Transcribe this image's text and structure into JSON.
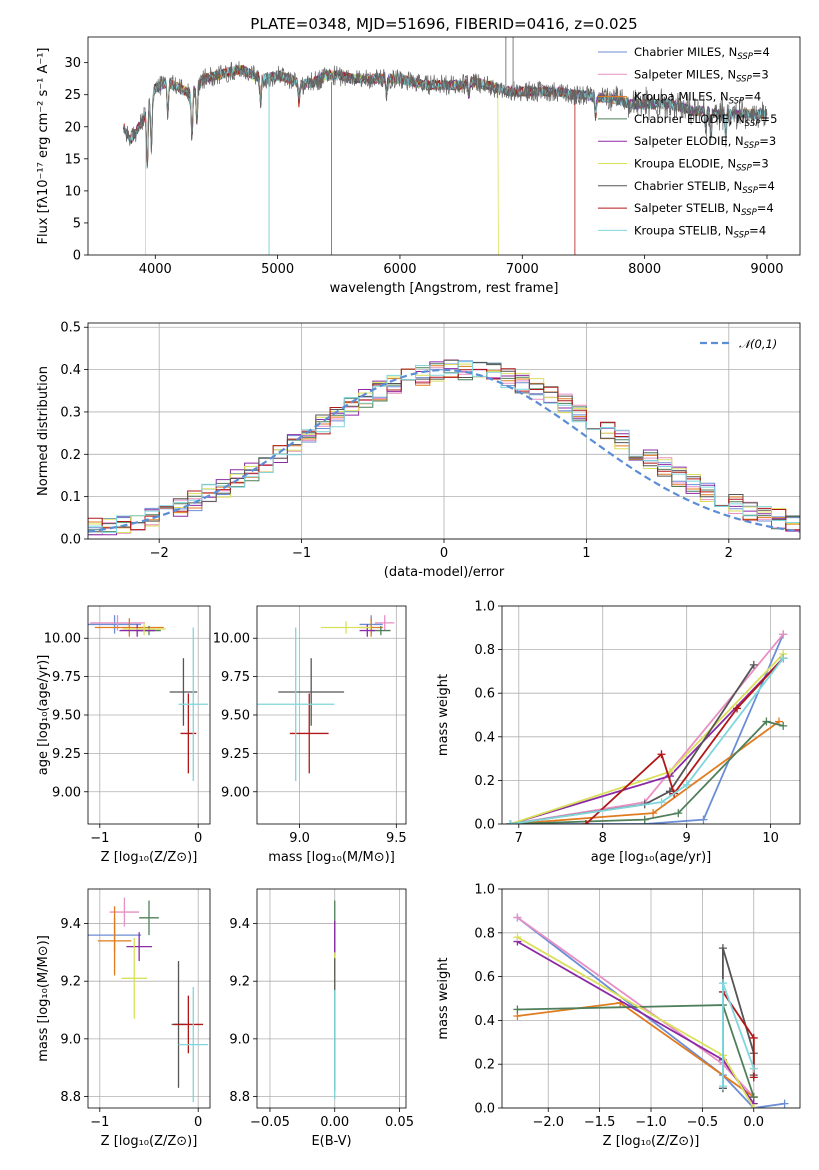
{
  "colors": {
    "Chabrier MILES": "#6b8ed6",
    "Salpeter MILES": "#e88fc4",
    "Kroupa MILES": "#e07b1f",
    "Chabrier ELODIE": "#4f7f5a",
    "Salpeter ELODIE": "#8b2aa6",
    "Kroupa ELODIE": "#d9e05a",
    "Chabrier STELIB": "#555555",
    "Salpeter STELIB": "#b01818",
    "Kroupa STELIB": "#7fd6dc"
  },
  "chart_data": [
    {
      "id": "spectrum",
      "type": "line",
      "title": "PLATE=0348, MJD=51696, FIBERID=0416, z=0.025",
      "xlabel": "wavelength [Angstrom, rest frame]",
      "ylabel": "Flux [fλ10⁻¹⁷ erg cm⁻² s⁻¹ A⁻¹]",
      "xlim": [
        3450,
        9270
      ],
      "ylim": [
        0,
        34
      ],
      "xticks": [
        "4000",
        "5000",
        "6000",
        "7000",
        "8000",
        "9000"
      ],
      "yticks": [
        "0",
        "5",
        "10",
        "15",
        "20",
        "25",
        "30"
      ],
      "grid": false,
      "legend_placement": "top-right",
      "data_continuum": {
        "x": [
          3740,
          3800,
          3900,
          4000,
          4100,
          4200,
          4300,
          4400,
          4500,
          4600,
          4700,
          4800,
          4900,
          5000,
          5100,
          5200,
          5300,
          5400,
          5500,
          5600,
          5700,
          5800,
          5900,
          6000,
          6100,
          6200,
          6300,
          6400,
          6500,
          6600,
          6700,
          6800,
          6900,
          7000,
          7100,
          7200,
          7300,
          7400,
          7500,
          7600,
          7700,
          7800,
          7900,
          8000,
          8100,
          8200,
          8300,
          8400,
          8500,
          8600,
          8700,
          8800,
          8900,
          9000
        ],
        "y": [
          20,
          18,
          21,
          26,
          27,
          26,
          25,
          27.5,
          28,
          28.5,
          29,
          28,
          27.5,
          28,
          27.5,
          26.5,
          27,
          28,
          28,
          27.5,
          27.5,
          27.5,
          27.5,
          27.5,
          27,
          26.5,
          26.5,
          26.5,
          26.5,
          27,
          26.5,
          26,
          25.5,
          25.5,
          25.5,
          25.5,
          25.5,
          25,
          25,
          24.5,
          24.5,
          24,
          23.5,
          23.5,
          23.5,
          23.5,
          23,
          22.5,
          22.5,
          22,
          22,
          22,
          22,
          22
        ]
      },
      "series": [
        {
          "name": "Chabrier MILES",
          "nssp": "4"
        },
        {
          "name": "Salpeter MILES",
          "nssp": "3"
        },
        {
          "name": "Kroupa MILES",
          "nssp": "4"
        },
        {
          "name": "Chabrier ELODIE",
          "nssp": "5"
        },
        {
          "name": "Salpeter ELODIE",
          "nssp": "3"
        },
        {
          "name": "Kroupa ELODIE",
          "nssp": "3"
        },
        {
          "name": "Chabrier STELIB",
          "nssp": "4"
        },
        {
          "name": "Salpeter STELIB",
          "nssp": "4"
        },
        {
          "name": "Kroupa STELIB",
          "nssp": "4"
        }
      ]
    },
    {
      "id": "residuals",
      "type": "line",
      "xlabel": "(data-model)/error",
      "ylabel": "Normed distribution",
      "xlim": [
        -2.5,
        2.5
      ],
      "ylim": [
        0,
        0.51
      ],
      "xticks": [
        "−2",
        "−1",
        "0",
        "1",
        "2"
      ],
      "yticks": [
        "0.0",
        "0.1",
        "0.2",
        "0.3",
        "0.4",
        "0.5"
      ],
      "grid": true,
      "legend_placement": "top-right",
      "reference_label": "𝒩(0,1)",
      "bin_width": 0.1
    },
    {
      "id": "age-vs-Z",
      "type": "scatter",
      "xlabel": "Z [log₁₀(Z/Z⊙)]",
      "ylabel": "age  [log₁₀(age/yr)]",
      "xlim": [
        -1.12,
        0.12
      ],
      "ylim": [
        8.79,
        10.21
      ],
      "xticks": [
        "−1",
        "0"
      ],
      "yticks": [
        "9.00",
        "9.25",
        "9.50",
        "9.75",
        "10.00"
      ],
      "grid": true,
      "points": [
        {
          "series": "Chabrier MILES",
          "x": -0.85,
          "y": 10.09,
          "xerr": 0.27,
          "yerr": 0.06
        },
        {
          "series": "Salpeter MILES",
          "x": -0.82,
          "y": 10.1,
          "xerr": 0.28,
          "yerr": 0.05
        },
        {
          "series": "Kroupa MILES",
          "x": -0.7,
          "y": 10.07,
          "xerr": 0.35,
          "yerr": 0.06
        },
        {
          "series": "Chabrier ELODIE",
          "x": -0.5,
          "y": 10.05,
          "xerr": 0.12,
          "yerr": 0.03
        },
        {
          "series": "Salpeter ELODIE",
          "x": -0.62,
          "y": 10.05,
          "xerr": 0.18,
          "yerr": 0.04
        },
        {
          "series": "Kroupa ELODIE",
          "x": -0.55,
          "y": 10.06,
          "xerr": 0.22,
          "yerr": 0.04
        },
        {
          "series": "Chabrier STELIB",
          "x": -0.15,
          "y": 9.65,
          "xerr": 0.14,
          "yerr": 0.22
        },
        {
          "series": "Salpeter STELIB",
          "x": -0.1,
          "y": 9.38,
          "xerr": 0.08,
          "yerr": 0.26
        },
        {
          "series": "Kroupa STELIB",
          "x": -0.05,
          "y": 9.57,
          "xerr": 0.15,
          "yerr": 0.5
        }
      ]
    },
    {
      "id": "age-vs-mass",
      "type": "scatter",
      "xlabel": "mass [log₁₀(M/M⊙)]",
      "xlim": [
        8.78,
        9.55
      ],
      "ylim": [
        8.79,
        10.21
      ],
      "xticks": [
        "9.0",
        "9.5"
      ],
      "yticks": [
        "9.00",
        "9.25",
        "9.50",
        "9.75",
        "10.00"
      ],
      "grid": true,
      "points": [
        {
          "series": "Chabrier MILES",
          "x": 9.37,
          "y": 10.09,
          "xerr": 0.06,
          "yerr": 0.06
        },
        {
          "series": "Salpeter MILES",
          "x": 9.44,
          "y": 10.1,
          "xerr": 0.05,
          "yerr": 0.05
        },
        {
          "series": "Kroupa MILES",
          "x": 9.37,
          "y": 10.07,
          "xerr": 0.06,
          "yerr": 0.06
        },
        {
          "series": "Chabrier ELODIE",
          "x": 9.42,
          "y": 10.05,
          "xerr": 0.05,
          "yerr": 0.03
        },
        {
          "series": "Salpeter ELODIE",
          "x": 9.35,
          "y": 10.05,
          "xerr": 0.04,
          "yerr": 0.04
        },
        {
          "series": "Kroupa ELODIE",
          "x": 9.24,
          "y": 10.07,
          "xerr": 0.13,
          "yerr": 0.04
        },
        {
          "series": "Chabrier STELIB",
          "x": 9.06,
          "y": 9.65,
          "xerr": 0.17,
          "yerr": 0.22
        },
        {
          "series": "Salpeter STELIB",
          "x": 9.05,
          "y": 9.38,
          "xerr": 0.1,
          "yerr": 0.26
        },
        {
          "series": "Kroupa STELIB",
          "x": 8.98,
          "y": 9.57,
          "xerr": 0.2,
          "yerr": 0.5
        }
      ]
    },
    {
      "id": "massweight-vs-age",
      "type": "line",
      "xlabel": "age  [log₁₀(age/yr)]",
      "ylabel": "mass weight",
      "xlim": [
        6.8,
        10.35
      ],
      "ylim": [
        0,
        1.0
      ],
      "xticks": [
        "7",
        "8",
        "9",
        "10"
      ],
      "yticks": [
        "0.0",
        "0.2",
        "0.4",
        "0.6",
        "0.8",
        "1.0"
      ],
      "grid": true,
      "series": [
        {
          "name": "Chabrier MILES",
          "x": [
            6.9,
            8.5,
            9.2,
            10.15
          ],
          "y": [
            0.0,
            0.0,
            0.02,
            0.87
          ]
        },
        {
          "name": "Salpeter MILES",
          "x": [
            6.9,
            8.5,
            10.15
          ],
          "y": [
            0.0,
            0.1,
            0.87
          ]
        },
        {
          "name": "Kroupa MILES",
          "x": [
            6.9,
            8.6,
            10.1
          ],
          "y": [
            0.0,
            0.05,
            0.47
          ]
        },
        {
          "name": "Chabrier ELODIE",
          "x": [
            6.9,
            8.5,
            8.9,
            9.95,
            10.15
          ],
          "y": [
            0.0,
            0.02,
            0.05,
            0.47,
            0.45
          ]
        },
        {
          "name": "Salpeter ELODIE",
          "x": [
            6.9,
            8.8,
            10.15
          ],
          "y": [
            0.0,
            0.22,
            0.76
          ]
        },
        {
          "name": "Kroupa ELODIE",
          "x": [
            6.9,
            8.8,
            10.15
          ],
          "y": [
            0.0,
            0.24,
            0.78
          ]
        },
        {
          "name": "Chabrier STELIB",
          "x": [
            6.9,
            8.5,
            8.8,
            9.8
          ],
          "y": [
            0.0,
            0.09,
            0.15,
            0.73
          ]
        },
        {
          "name": "Salpeter STELIB",
          "x": [
            7.8,
            8.7,
            8.85,
            9.6,
            10.15
          ],
          "y": [
            0.0,
            0.32,
            0.14,
            0.53,
            0.76
          ]
        },
        {
          "name": "Kroupa STELIB",
          "x": [
            6.9,
            8.7,
            9.0,
            10.15
          ],
          "y": [
            0.0,
            0.1,
            0.18,
            0.76
          ]
        }
      ]
    },
    {
      "id": "mass-vs-Z",
      "type": "scatter",
      "xlabel": "Z [log₁₀(Z/Z⊙)]",
      "ylabel": "mass [log₁₀(M/M⊙)]",
      "xlim": [
        -1.12,
        0.12
      ],
      "ylim": [
        8.76,
        9.52
      ],
      "xticks": [
        "−1",
        "0"
      ],
      "yticks": [
        "8.8",
        "9.0",
        "9.2",
        "9.4"
      ],
      "grid": true,
      "points": [
        {
          "series": "Chabrier MILES",
          "x": -0.85,
          "y": 9.36,
          "xerr": 0.27,
          "yerr": 0.06
        },
        {
          "series": "Salpeter MILES",
          "x": -0.75,
          "y": 9.44,
          "xerr": 0.15,
          "yerr": 0.05
        },
        {
          "series": "Kroupa MILES",
          "x": -0.85,
          "y": 9.34,
          "xerr": 0.17,
          "yerr": 0.12
        },
        {
          "series": "Chabrier ELODIE",
          "x": -0.5,
          "y": 9.42,
          "xerr": 0.1,
          "yerr": 0.06
        },
        {
          "series": "Salpeter ELODIE",
          "x": -0.6,
          "y": 9.32,
          "xerr": 0.13,
          "yerr": 0.05
        },
        {
          "series": "Kroupa ELODIE",
          "x": -0.65,
          "y": 9.21,
          "xerr": 0.13,
          "yerr": 0.14
        },
        {
          "series": "Chabrier STELIB",
          "x": -0.2,
          "y": 9.05,
          "xerr": 0.07,
          "yerr": 0.22
        },
        {
          "series": "Salpeter STELIB",
          "x": -0.1,
          "y": 9.05,
          "xerr": 0.15,
          "yerr": 0.1
        },
        {
          "series": "Kroupa STELIB",
          "x": -0.05,
          "y": 8.98,
          "xerr": 0.15,
          "yerr": 0.2
        }
      ]
    },
    {
      "id": "mass-vs-EBV",
      "type": "scatter",
      "xlabel": "E(B-V)",
      "xlim": [
        -0.06,
        0.055
      ],
      "ylim": [
        8.76,
        9.52
      ],
      "xticks": [
        "−0.05",
        "0.00",
        "0.05"
      ],
      "yticks": [
        "8.8",
        "9.0",
        "9.2",
        "9.4"
      ],
      "grid": true,
      "points": [
        {
          "series": "Chabrier ELODIE",
          "x": 0.0,
          "y": 9.38,
          "xerr": 0.0,
          "yerr": 0.1
        },
        {
          "series": "Salpeter ELODIE",
          "x": 0.0,
          "y": 9.35,
          "xerr": 0.0,
          "yerr": 0.06
        },
        {
          "series": "Kroupa ELODIE",
          "x": 0.0,
          "y": 9.22,
          "xerr": 0.0,
          "yerr": 0.08
        },
        {
          "series": "Chabrier STELIB",
          "x": 0.0,
          "y": 9.05,
          "xerr": 0.0,
          "yerr": 0.23
        },
        {
          "series": "Kroupa STELIB",
          "x": 0.0,
          "y": 8.98,
          "xerr": 0.0,
          "yerr": 0.19
        }
      ]
    },
    {
      "id": "massweight-vs-Z",
      "type": "line",
      "xlabel": "Z [log₁₀(Z/Z⊙)]",
      "ylabel": "mass weight",
      "xlim": [
        -2.45,
        0.45
      ],
      "ylim": [
        0,
        1.0
      ],
      "xticks": [
        "−2.0",
        "−1.5",
        "−1.0",
        "−0.5",
        "0.0"
      ],
      "yticks": [
        "0.0",
        "0.2",
        "0.4",
        "0.6",
        "0.8",
        "1.0"
      ],
      "grid": true,
      "series": [
        {
          "name": "Chabrier MILES",
          "x": [
            -2.3,
            -0.3,
            0.0,
            0.3
          ],
          "y": [
            0.87,
            0.15,
            0.0,
            0.02
          ]
        },
        {
          "name": "Salpeter MILES",
          "x": [
            -2.3,
            -0.3,
            0.0
          ],
          "y": [
            0.87,
            0.2,
            0.05
          ]
        },
        {
          "name": "Kroupa MILES",
          "x": [
            -2.3,
            -1.3,
            0.0
          ],
          "y": [
            0.42,
            0.48,
            0.05
          ]
        },
        {
          "name": "Chabrier ELODIE",
          "x": [
            -2.3,
            -0.3,
            0.0
          ],
          "y": [
            0.45,
            0.47,
            0.05
          ]
        },
        {
          "name": "Salpeter ELODIE",
          "x": [
            -2.3,
            -0.3,
            0.0
          ],
          "y": [
            0.76,
            0.22,
            0.02
          ]
        },
        {
          "name": "Kroupa ELODIE",
          "x": [
            -2.3,
            -0.3,
            0.0
          ],
          "y": [
            0.78,
            0.24,
            0.0
          ]
        },
        {
          "name": "Chabrier STELIB",
          "x": [
            -0.3,
            -0.3,
            0.0,
            0.0
          ],
          "y": [
            0.09,
            0.73,
            0.25,
            0.15
          ]
        },
        {
          "name": "Salpeter STELIB",
          "x": [
            -0.3,
            0.0,
            0.0
          ],
          "y": [
            0.53,
            0.32,
            0.14
          ]
        },
        {
          "name": "Kroupa STELIB",
          "x": [
            -0.3,
            -0.3,
            0.0
          ],
          "y": [
            0.1,
            0.57,
            0.18
          ]
        }
      ]
    }
  ]
}
